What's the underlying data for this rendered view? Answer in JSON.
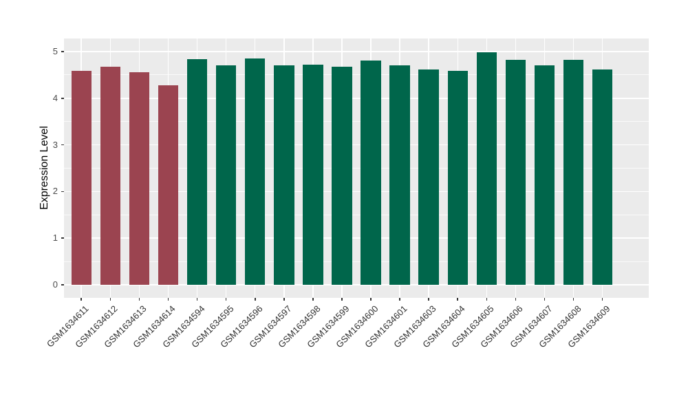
{
  "figure": {
    "background_color": "#FFFFFF",
    "panel_background_color": "#EBEBEB",
    "grid_major_color": "#FFFFFF",
    "grid_minor_color": "#FFFFFF",
    "axis_text_color": "#4A4A4A",
    "axis_title_color": "#000000",
    "tick_mark_color": "#333333"
  },
  "chart_data": {
    "type": "bar",
    "title": "",
    "xlabel": "",
    "ylabel": "Expression Level",
    "ylim": [
      0,
      5
    ],
    "y_ticks": [
      0,
      1,
      2,
      3,
      4,
      5
    ],
    "y_minor_ticks": [
      0.5,
      1.5,
      2.5,
      3.5,
      4.5
    ],
    "grid": true,
    "legend_position": "none",
    "x_label_angle_deg": 45,
    "bar_width_fraction": 0.7,
    "categories": [
      "GSM1634611",
      "GSM1634612",
      "GSM1634613",
      "GSM1634614",
      "GSM1634594",
      "GSM1634595",
      "GSM1634596",
      "GSM1634597",
      "GSM1634598",
      "GSM1634599",
      "GSM1634600",
      "GSM1634601",
      "GSM1634603",
      "GSM1634604",
      "GSM1634605",
      "GSM1634606",
      "GSM1634607",
      "GSM1634608",
      "GSM1634609"
    ],
    "values": [
      4.58,
      4.67,
      4.56,
      4.27,
      4.84,
      4.7,
      4.85,
      4.71,
      4.72,
      4.67,
      4.81,
      4.7,
      4.61,
      4.58,
      4.99,
      4.83,
      4.7,
      4.82,
      4.61
    ],
    "bar_colors": [
      "#9B4450",
      "#9B4450",
      "#9B4450",
      "#9B4450",
      "#00664B",
      "#00664B",
      "#00664B",
      "#00664B",
      "#00664B",
      "#00664B",
      "#00664B",
      "#00664B",
      "#00664B",
      "#00664B",
      "#00664B",
      "#00664B",
      "#00664B",
      "#00664B",
      "#00664B"
    ]
  }
}
